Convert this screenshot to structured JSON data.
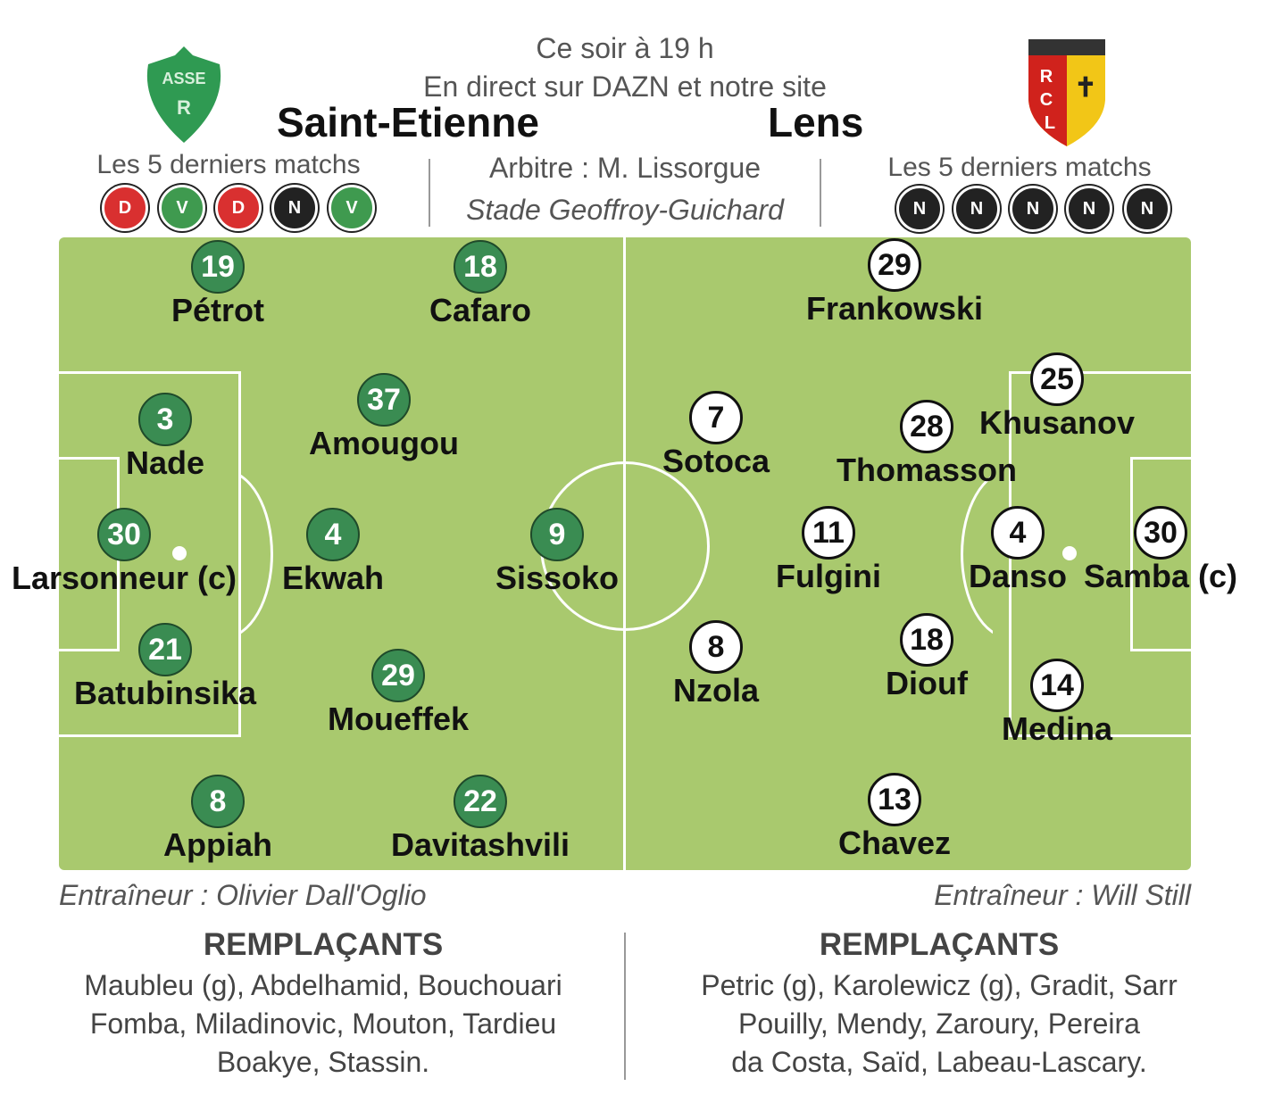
{
  "header": {
    "time": "Ce soir à  19 h",
    "broadcast": "En direct sur DAZN et notre site",
    "referee": "Arbitre : M. Lissorgue",
    "stadium": "Stade Geoffroy-Guichard"
  },
  "home": {
    "name": "Saint-Etienne",
    "logo_text": "ASSE",
    "form_label": "Les 5 derniers matchs",
    "form": [
      "D",
      "V",
      "D",
      "N",
      "V"
    ],
    "players": [
      {
        "num": "19",
        "name": "Pétrot"
      },
      {
        "num": "18",
        "name": "Cafaro"
      },
      {
        "num": "37",
        "name": "Amougou"
      },
      {
        "num": "3",
        "name": "Nade"
      },
      {
        "num": "30",
        "name": "Larsonneur (c)"
      },
      {
        "num": "4",
        "name": "Ekwah"
      },
      {
        "num": "9",
        "name": "Sissoko"
      },
      {
        "num": "21",
        "name": "Batubinsika"
      },
      {
        "num": "29",
        "name": "Moueffek"
      },
      {
        "num": "8",
        "name": "Appiah"
      },
      {
        "num": "22",
        "name": "Davitashvili"
      }
    ],
    "coach": "Entraîneur : Olivier Dall'Oglio",
    "subs_title": "REMPLAÇANTS",
    "subs": [
      "Maubleu (g), Abdelhamid, Bouchouari",
      "Fomba, Miladinovic, Mouton, Tardieu",
      "Boakye, Stassin."
    ]
  },
  "away": {
    "name": "Lens",
    "logo_text": "RCL",
    "form_label": "Les 5 derniers matchs",
    "form": [
      "N",
      "N",
      "N",
      "N",
      "N"
    ],
    "players": [
      {
        "num": "29",
        "name": "Frankowski"
      },
      {
        "num": "25",
        "name": "Khusanov"
      },
      {
        "num": "28",
        "name": "Thomasson"
      },
      {
        "num": "7",
        "name": "Sotoca"
      },
      {
        "num": "11",
        "name": "Fulgini"
      },
      {
        "num": "4",
        "name": "Danso"
      },
      {
        "num": "30",
        "name": "Samba (c)"
      },
      {
        "num": "8",
        "name": "Nzola"
      },
      {
        "num": "18",
        "name": "Diouf"
      },
      {
        "num": "14",
        "name": "Medina"
      },
      {
        "num": "13",
        "name": "Chavez"
      }
    ],
    "coach": "Entraîneur : Will Still",
    "subs_title": "REMPLAÇANTS",
    "subs": [
      "Petric (g), Karolewicz (g), Gradit, Sarr",
      "Pouilly, Mendy, Zaroury, Pereira",
      "da Costa, Saïd, Labeau-Lascary."
    ]
  },
  "colors": {
    "win": "#3f9a4f",
    "draw": "#222222",
    "loss": "#d93030",
    "pitch": "#a9c96e",
    "home_circle": "#3a8c52"
  }
}
